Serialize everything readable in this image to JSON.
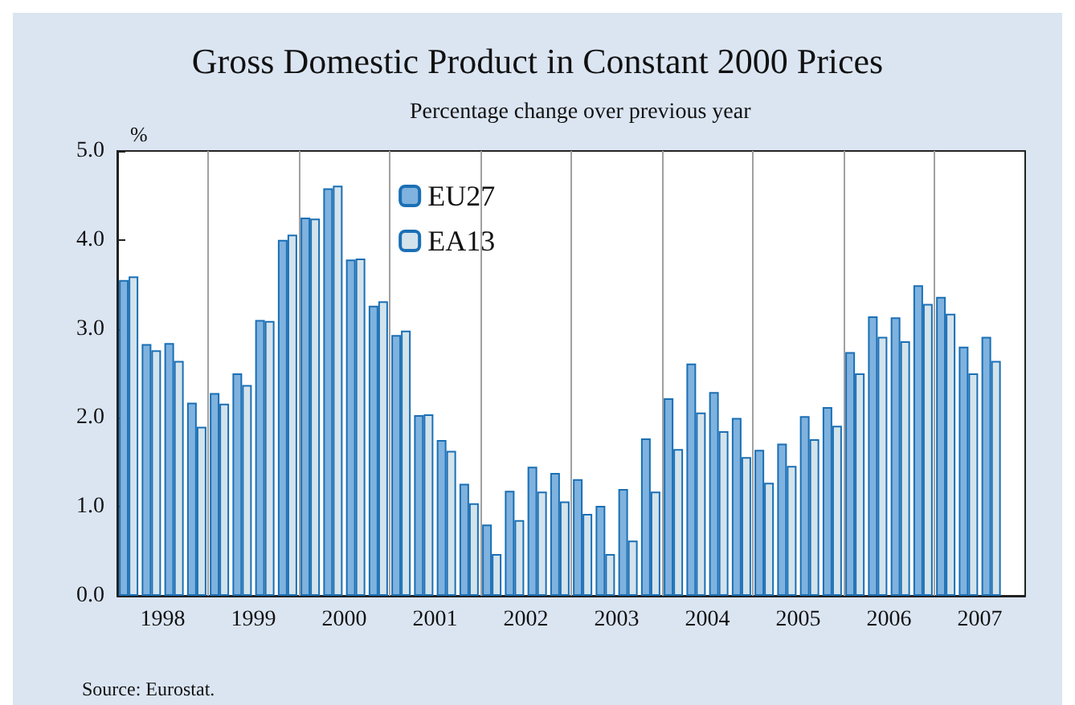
{
  "chart_data": {
    "type": "bar",
    "title": "Gross Domestic Product in Constant 2000 Prices",
    "subtitle": "Percentage change over previous year",
    "ylabel": "%",
    "x": [
      1998.125,
      1998.375,
      1998.625,
      1998.875,
      1999.125,
      1999.375,
      1999.625,
      1999.875,
      2000.125,
      2000.375,
      2000.625,
      2000.875,
      2001.125,
      2001.375,
      2001.625,
      2001.875,
      2002.125,
      2002.375,
      2002.625,
      2002.875,
      2003.125,
      2003.375,
      2003.625,
      2003.875,
      2004.125,
      2004.375,
      2004.625,
      2004.875,
      2005.125,
      2005.375,
      2005.625,
      2005.875,
      2006.125,
      2006.375,
      2006.625,
      2006.875,
      2007.125,
      2007.375,
      2007.625
    ],
    "series": [
      {
        "name": "EU27",
        "color": "#7fb2de",
        "values": [
          3.55,
          2.83,
          2.84,
          2.17,
          2.28,
          2.5,
          3.1,
          4.0,
          4.25,
          4.58,
          3.78,
          3.26,
          2.93,
          2.03,
          1.75,
          1.26,
          0.8,
          1.18,
          1.45,
          1.38,
          1.31,
          1.01,
          1.2,
          1.77,
          2.22,
          2.61,
          2.29,
          2.0,
          1.64,
          1.71,
          2.02,
          2.12,
          2.74,
          3.14,
          3.13,
          3.49,
          3.36,
          2.8,
          2.91
        ]
      },
      {
        "name": "EA13",
        "color": "#d3e3ec",
        "values": [
          3.59,
          2.76,
          2.64,
          1.9,
          2.16,
          2.37,
          3.09,
          4.06,
          4.24,
          4.61,
          3.79,
          3.31,
          2.98,
          2.04,
          1.63,
          1.04,
          0.47,
          0.85,
          1.17,
          1.06,
          0.92,
          0.47,
          0.62,
          1.17,
          1.65,
          2.06,
          1.85,
          1.56,
          1.27,
          1.46,
          1.76,
          1.91,
          2.5,
          2.91,
          2.86,
          3.28,
          3.17,
          2.5,
          2.64
        ]
      }
    ],
    "xlim": [
      1998,
      2008
    ],
    "xticks": [
      {
        "value": 1998.5,
        "label": "1998"
      },
      {
        "value": 1999.5,
        "label": "1999"
      },
      {
        "value": 2000.5,
        "label": "2000"
      },
      {
        "value": 2001.5,
        "label": "2001"
      },
      {
        "value": 2002.5,
        "label": "2002"
      },
      {
        "value": 2003.5,
        "label": "2003"
      },
      {
        "value": 2004.5,
        "label": "2004"
      },
      {
        "value": 2005.5,
        "label": "2005"
      },
      {
        "value": 2006.5,
        "label": "2006"
      },
      {
        "value": 2007.5,
        "label": "2007"
      },
      {
        "value": 1999,
        "label": null
      },
      {
        "value": 2000,
        "label": null
      },
      {
        "value": 2001,
        "label": null
      },
      {
        "value": 2002,
        "label": null
      },
      {
        "value": 2003,
        "label": null
      },
      {
        "value": 2004,
        "label": null
      },
      {
        "value": 2005,
        "label": null
      },
      {
        "value": 2006,
        "label": null
      },
      {
        "value": 2007,
        "label": null
      }
    ],
    "ylim": [
      0,
      5
    ],
    "yticks": [
      {
        "value": 0,
        "label": "0.0"
      },
      {
        "value": 1,
        "label": "1.0"
      },
      {
        "value": 2,
        "label": "2.0"
      },
      {
        "value": 3,
        "label": "3.0"
      },
      {
        "value": 4,
        "label": "4.0"
      },
      {
        "value": 5,
        "label": "5.0"
      }
    ],
    "ref_lines": [
      {
        "axis": "x",
        "value": 1999,
        "color": "#a0a0a0"
      },
      {
        "axis": "x",
        "value": 2000,
        "color": "#a0a0a0"
      },
      {
        "axis": "x",
        "value": 2001,
        "color": "#a0a0a0"
      },
      {
        "axis": "x",
        "value": 2002,
        "color": "#a0a0a0"
      },
      {
        "axis": "x",
        "value": 2003,
        "color": "#a0a0a0"
      },
      {
        "axis": "x",
        "value": 2004,
        "color": "#a0a0a0"
      },
      {
        "axis": "x",
        "value": 2005,
        "color": "#a0a0a0"
      },
      {
        "axis": "x",
        "value": 2006,
        "color": "#a0a0a0"
      },
      {
        "axis": "x",
        "value": 2007,
        "color": "#a0a0a0"
      }
    ],
    "legend": "top left",
    "grid": false,
    "annotations": [
      "Source: Eurostat."
    ]
  }
}
